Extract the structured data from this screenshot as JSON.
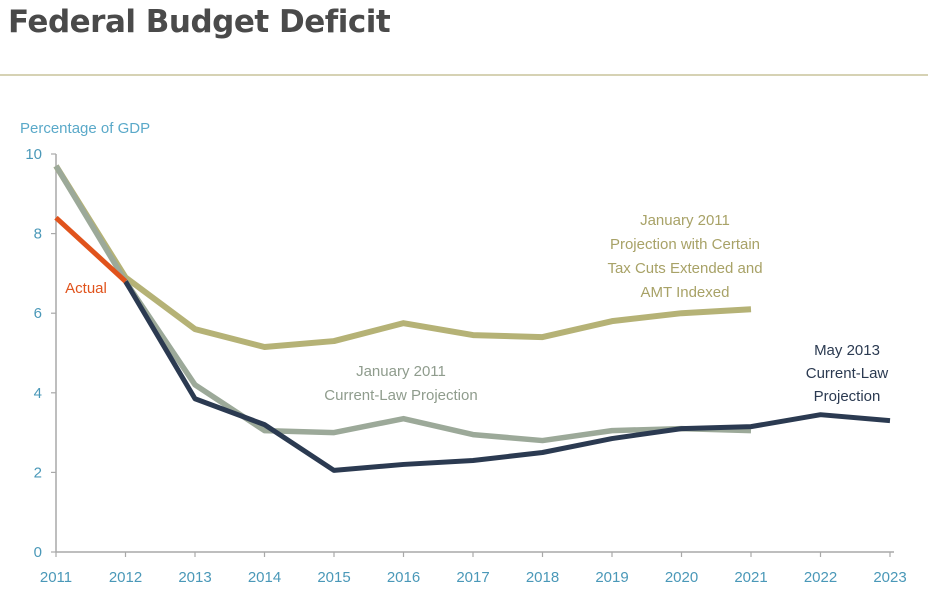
{
  "title": "Federal Budget Deficit",
  "chart_data": {
    "type": "line",
    "ylabel": "Percentage of GDP",
    "xlabel": "",
    "ylim": [
      0,
      10
    ],
    "yticks": [
      0,
      2,
      4,
      6,
      8,
      10
    ],
    "x": [
      "2011",
      "2012",
      "2013",
      "2014",
      "2015",
      "2016",
      "2017",
      "2018",
      "2019",
      "2020",
      "2021",
      "2022",
      "2023"
    ],
    "grid": false,
    "series": [
      {
        "key": "jan2011_alt",
        "label": [
          "January 2011",
          "Projection with Certain",
          "Tax Cuts Extended and",
          "AMT Indexed"
        ],
        "color": "#b5b276",
        "values": [
          9.7,
          6.9,
          5.6,
          5.15,
          5.3,
          5.75,
          5.45,
          5.4,
          5.8,
          6.0,
          6.1,
          null,
          null
        ]
      },
      {
        "key": "jan2011_current_law",
        "label": [
          "January 2011",
          "Current-Law Projection"
        ],
        "color": "#9ca999",
        "values": [
          9.7,
          6.8,
          4.2,
          3.05,
          3.0,
          3.35,
          2.95,
          2.8,
          3.05,
          3.1,
          3.05,
          null,
          null
        ]
      },
      {
        "key": "may2013_current_law",
        "label": [
          "May 2013",
          "Current-Law",
          "Projection"
        ],
        "color": "#2b3a51",
        "values": [
          null,
          6.8,
          3.85,
          3.2,
          2.05,
          2.2,
          2.3,
          2.5,
          2.85,
          3.1,
          3.15,
          3.45,
          3.3
        ]
      },
      {
        "key": "actual",
        "label": [
          "Actual"
        ],
        "color": "#e0531c",
        "values": [
          8.4,
          6.8,
          null,
          null,
          null,
          null,
          null,
          null,
          null,
          null,
          null,
          null,
          null
        ]
      }
    ]
  }
}
